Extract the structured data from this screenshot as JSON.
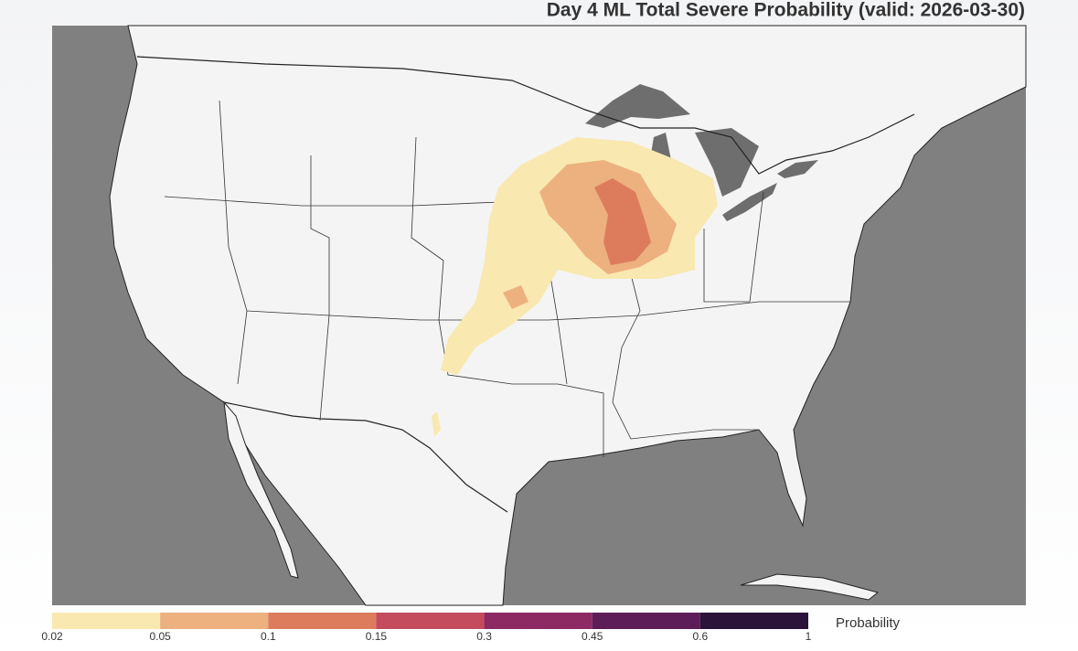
{
  "title": "Day 4 ML Total Severe Probability (valid: 2026-03-30)",
  "colorbar": {
    "label": "Probability",
    "ticks": [
      0.02,
      0.05,
      0.1,
      0.15,
      0.3,
      0.45,
      0.6,
      1
    ],
    "colors": [
      "#f9e8b0",
      "#edb07f",
      "#dd7c5c",
      "#c44b5d",
      "#8d2a63",
      "#5c1d58",
      "#2c1339"
    ]
  }
}
